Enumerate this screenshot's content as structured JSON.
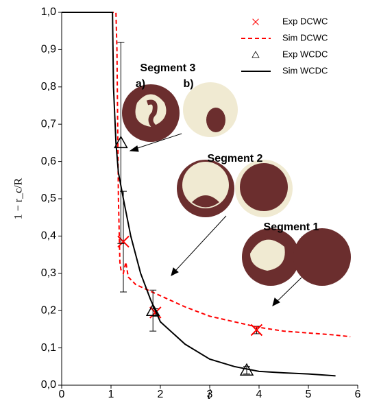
{
  "chart_data": {
    "type": "line",
    "xlabel": "t̂",
    "ylabel": "1 − r_c/R",
    "xlim": [
      0,
      6
    ],
    "xticks": [
      0,
      1,
      2,
      3,
      4,
      5,
      6
    ],
    "ylim": [
      0,
      1
    ],
    "yticks": [
      {
        "value": 0,
        "label": "0,0"
      },
      {
        "value": 0.1,
        "label": "0,1"
      },
      {
        "value": 0.2,
        "label": "0,2"
      },
      {
        "value": 0.3,
        "label": "0,3"
      },
      {
        "value": 0.4,
        "label": "0,4"
      },
      {
        "value": 0.5,
        "label": "0,5"
      },
      {
        "value": 0.6,
        "label": "0,6"
      },
      {
        "value": 0.7,
        "label": "0,7"
      },
      {
        "value": 0.8,
        "label": "0,8"
      },
      {
        "value": 0.9,
        "label": "0,9"
      },
      {
        "value": 1,
        "label": "1,0"
      }
    ],
    "legend": "upper right",
    "series": [
      {
        "name": "Exp DCWC",
        "color": "#ff0000",
        "style": "cross",
        "x": [
          1.25,
          1.9,
          3.95
        ],
        "values": [
          0.385,
          0.195,
          0.148
        ],
        "errors": [
          0.135,
          0.01,
          0.01
        ]
      },
      {
        "name": "Sim DCWC",
        "color": "#ff0000",
        "style": "dashed",
        "x": [
          0,
          1.1,
          1.12,
          1.15,
          1.18,
          1.2,
          1.25,
          1.3,
          1.35,
          1.5,
          2,
          2.5,
          3,
          3.5,
          4,
          4.5,
          5,
          5.5,
          5.85
        ],
        "values": [
          1,
          1,
          0.9,
          0.5,
          0.33,
          0.31,
          0.3,
          0.33,
          0.29,
          0.27,
          0.24,
          0.21,
          0.185,
          0.17,
          0.155,
          0.145,
          0.14,
          0.135,
          0.13
        ]
      },
      {
        "name": "Exp WCDC",
        "color": "#000000",
        "style": "triangle",
        "x": [
          1.2,
          1.85,
          3.75
        ],
        "values": [
          0.65,
          0.2,
          0.04
        ],
        "errors": [
          0.27,
          0.055,
          0.01
        ]
      },
      {
        "name": "Sim WCDC",
        "color": "#000000",
        "style": "solid",
        "x": [
          0,
          1.03,
          1.05,
          1.1,
          1.15,
          1.25,
          1.4,
          1.6,
          1.8,
          2,
          2.5,
          3,
          3.5,
          4,
          4.5,
          5,
          5.55
        ],
        "values": [
          1,
          1,
          0.8,
          0.65,
          0.57,
          0.5,
          0.4,
          0.3,
          0.23,
          0.17,
          0.11,
          0.07,
          0.05,
          0.037,
          0.033,
          0.03,
          0.025
        ]
      }
    ],
    "annotations": [
      "Segment 3",
      "a)",
      "b)",
      "Segment 2",
      "Segment 1"
    ]
  }
}
